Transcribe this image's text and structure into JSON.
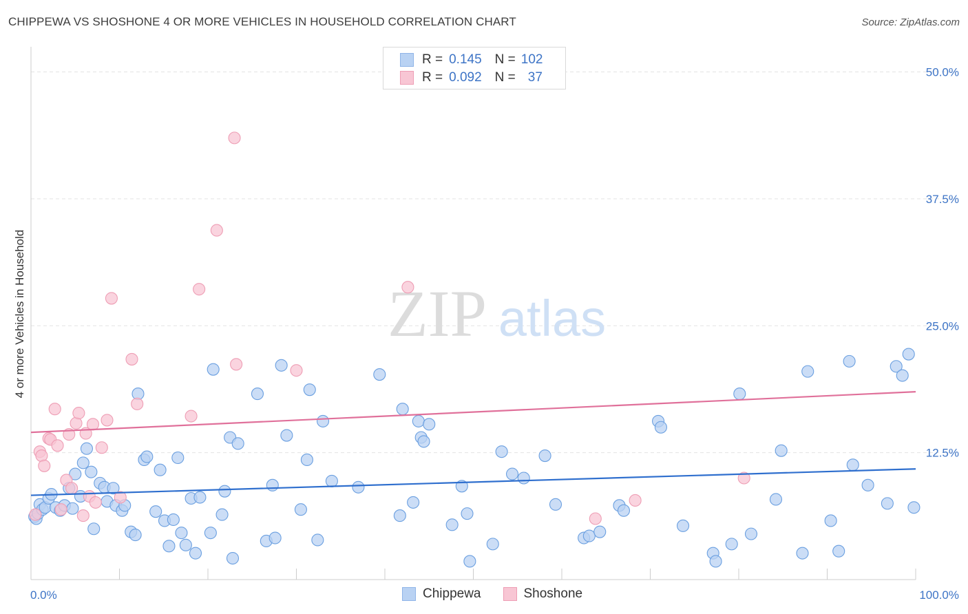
{
  "title": "CHIPPEWA VS SHOSHONE 4 OR MORE VEHICLES IN HOUSEHOLD CORRELATION CHART",
  "source": "Source: ZipAtlas.com",
  "watermark": {
    "zip": "ZIP",
    "atlas": "atlas"
  },
  "legend_stats": [
    {
      "r_label": "R =",
      "r_value": "0.145",
      "n_label": "N =",
      "n_value": "102",
      "color": "#b9d2f3"
    },
    {
      "r_label": "R =",
      "r_value": "0.092",
      "n_label": "N =",
      "n_value": "37",
      "color": "#f8c6d4"
    }
  ],
  "chart_data": {
    "type": "scatter",
    "title": "CHIPPEWA VS SHOSHONE 4 OR MORE VEHICLES IN HOUSEHOLD CORRELATION CHART",
    "xlabel": "",
    "ylabel": "4 or more Vehicles in Household",
    "xlim": [
      0,
      100
    ],
    "ylim": [
      0,
      52
    ],
    "x_tick_labels": [
      "0.0%",
      "100.0%"
    ],
    "y_ticks": [
      12.5,
      25.0,
      37.5,
      50.0
    ],
    "y_tick_labels": [
      "12.5%",
      "25.0%",
      "37.5%",
      "50.0%"
    ],
    "grid": true,
    "legend": "bottom-center",
    "series": [
      {
        "name": "Chippewa",
        "color": "#6a9fe0",
        "fill": "#b9d2f3",
        "trend": {
          "start": [
            0,
            8.3
          ],
          "end": [
            100,
            10.9
          ],
          "color": "#2f6fce"
        },
        "points": [
          [
            0.4,
            6.2
          ],
          [
            0.6,
            6.0
          ],
          [
            0.8,
            6.5
          ],
          [
            1.0,
            7.4
          ],
          [
            1.3,
            6.9
          ],
          [
            1.6,
            7.1
          ],
          [
            2.0,
            8.0
          ],
          [
            2.3,
            8.4
          ],
          [
            2.8,
            7.1
          ],
          [
            3.3,
            6.8
          ],
          [
            3.8,
            7.3
          ],
          [
            4.3,
            9.0
          ],
          [
            4.7,
            7.0
          ],
          [
            5.0,
            10.4
          ],
          [
            5.6,
            8.2
          ],
          [
            5.9,
            11.5
          ],
          [
            6.3,
            12.9
          ],
          [
            6.8,
            10.6
          ],
          [
            7.1,
            5.0
          ],
          [
            7.8,
            9.5
          ],
          [
            8.3,
            9.1
          ],
          [
            8.6,
            7.7
          ],
          [
            9.3,
            9.0
          ],
          [
            9.6,
            7.3
          ],
          [
            10.3,
            6.8
          ],
          [
            10.6,
            7.3
          ],
          [
            11.3,
            4.7
          ],
          [
            11.8,
            4.4
          ],
          [
            12.1,
            18.3
          ],
          [
            12.8,
            11.8
          ],
          [
            13.1,
            12.1
          ],
          [
            14.1,
            6.7
          ],
          [
            14.6,
            10.8
          ],
          [
            15.1,
            5.8
          ],
          [
            15.6,
            3.3
          ],
          [
            16.1,
            5.9
          ],
          [
            16.6,
            12.0
          ],
          [
            17.0,
            4.6
          ],
          [
            17.5,
            3.4
          ],
          [
            18.1,
            8.0
          ],
          [
            18.6,
            2.6
          ],
          [
            19.1,
            8.1
          ],
          [
            20.3,
            4.6
          ],
          [
            20.6,
            20.7
          ],
          [
            21.6,
            6.4
          ],
          [
            21.9,
            8.7
          ],
          [
            22.5,
            14.0
          ],
          [
            22.8,
            2.1
          ],
          [
            23.4,
            13.4
          ],
          [
            25.6,
            18.3
          ],
          [
            26.6,
            3.8
          ],
          [
            27.3,
            9.3
          ],
          [
            27.6,
            4.1
          ],
          [
            28.3,
            21.1
          ],
          [
            28.9,
            14.2
          ],
          [
            30.5,
            6.9
          ],
          [
            31.2,
            11.8
          ],
          [
            31.5,
            18.7
          ],
          [
            32.4,
            3.9
          ],
          [
            33.0,
            15.6
          ],
          [
            34.0,
            9.7
          ],
          [
            37.0,
            9.1
          ],
          [
            39.4,
            20.2
          ],
          [
            41.7,
            6.3
          ],
          [
            42.0,
            16.8
          ],
          [
            43.2,
            7.6
          ],
          [
            43.8,
            15.6
          ],
          [
            44.1,
            14.0
          ],
          [
            44.4,
            13.6
          ],
          [
            45.0,
            15.3
          ],
          [
            47.6,
            5.4
          ],
          [
            48.7,
            9.2
          ],
          [
            49.3,
            6.5
          ],
          [
            49.6,
            1.8
          ],
          [
            52.2,
            3.5
          ],
          [
            53.2,
            12.6
          ],
          [
            54.4,
            10.4
          ],
          [
            55.7,
            10.0
          ],
          [
            58.1,
            12.2
          ],
          [
            59.3,
            7.4
          ],
          [
            62.5,
            4.1
          ],
          [
            63.1,
            4.3
          ],
          [
            64.3,
            4.7
          ],
          [
            66.5,
            7.3
          ],
          [
            67.0,
            6.8
          ],
          [
            70.9,
            15.6
          ],
          [
            71.2,
            15.0
          ],
          [
            73.7,
            5.3
          ],
          [
            77.1,
            2.6
          ],
          [
            77.4,
            1.8
          ],
          [
            79.2,
            3.5
          ],
          [
            80.1,
            18.3
          ],
          [
            81.4,
            4.5
          ],
          [
            84.2,
            7.9
          ],
          [
            84.8,
            12.7
          ],
          [
            87.2,
            2.6
          ],
          [
            87.8,
            20.5
          ],
          [
            90.4,
            5.8
          ],
          [
            91.3,
            2.8
          ],
          [
            92.5,
            21.5
          ],
          [
            92.9,
            11.3
          ],
          [
            94.6,
            9.3
          ],
          [
            96.8,
            7.5
          ],
          [
            97.8,
            21.0
          ],
          [
            98.5,
            20.1
          ],
          [
            99.2,
            22.2
          ],
          [
            99.8,
            7.1
          ]
        ]
      },
      {
        "name": "Shoshone",
        "color": "#ee9db4",
        "fill": "#f8c6d4",
        "trend": {
          "start": [
            0,
            14.5
          ],
          "end": [
            100,
            18.5
          ],
          "color": "#e0709a"
        },
        "points": [
          [
            0.5,
            6.4
          ],
          [
            1.0,
            12.6
          ],
          [
            1.2,
            12.2
          ],
          [
            1.5,
            11.2
          ],
          [
            2.0,
            13.9
          ],
          [
            2.2,
            13.8
          ],
          [
            2.7,
            16.8
          ],
          [
            3.0,
            13.2
          ],
          [
            3.4,
            6.9
          ],
          [
            4.0,
            9.8
          ],
          [
            4.3,
            14.3
          ],
          [
            4.6,
            9.0
          ],
          [
            5.1,
            15.4
          ],
          [
            5.4,
            16.4
          ],
          [
            5.9,
            6.3
          ],
          [
            6.2,
            14.4
          ],
          [
            6.6,
            8.2
          ],
          [
            7.0,
            15.3
          ],
          [
            7.3,
            7.6
          ],
          [
            8.0,
            13.0
          ],
          [
            8.6,
            15.7
          ],
          [
            9.1,
            27.7
          ],
          [
            10.1,
            8.1
          ],
          [
            11.4,
            21.7
          ],
          [
            12.0,
            17.3
          ],
          [
            18.1,
            16.1
          ],
          [
            19.0,
            28.6
          ],
          [
            21.0,
            34.4
          ],
          [
            23.0,
            43.5
          ],
          [
            23.2,
            21.2
          ],
          [
            30.0,
            20.6
          ],
          [
            42.6,
            28.8
          ],
          [
            63.8,
            6.0
          ],
          [
            68.3,
            7.8
          ],
          [
            80.6,
            10.0
          ]
        ]
      }
    ]
  },
  "bottom_legend": [
    {
      "label": "Chippewa",
      "color": "#b9d2f3"
    },
    {
      "label": "Shoshone",
      "color": "#f8c6d4"
    }
  ]
}
